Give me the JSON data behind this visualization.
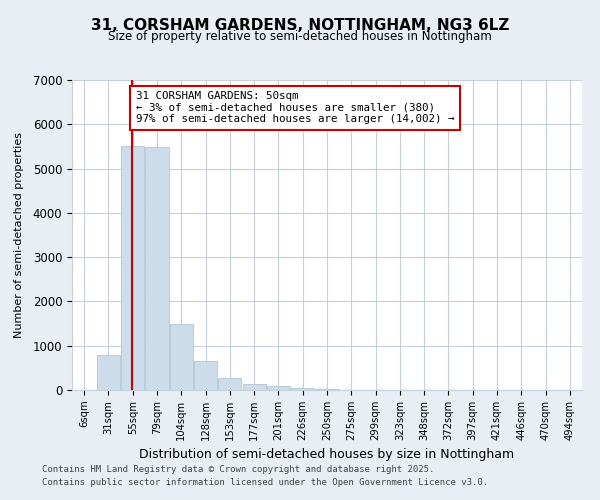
{
  "title": "31, CORSHAM GARDENS, NOTTINGHAM, NG3 6LZ",
  "subtitle": "Size of property relative to semi-detached houses in Nottingham",
  "xlabel": "Distribution of semi-detached houses by size in Nottingham",
  "ylabel": "Number of semi-detached properties",
  "categories": [
    "6sqm",
    "31sqm",
    "55sqm",
    "79sqm",
    "104sqm",
    "128sqm",
    "153sqm",
    "177sqm",
    "201sqm",
    "226sqm",
    "250sqm",
    "275sqm",
    "299sqm",
    "323sqm",
    "348sqm",
    "372sqm",
    "397sqm",
    "421sqm",
    "446sqm",
    "470sqm",
    "494sqm"
  ],
  "values": [
    0,
    800,
    5520,
    5480,
    1490,
    650,
    270,
    130,
    80,
    50,
    30,
    0,
    0,
    0,
    0,
    0,
    0,
    0,
    0,
    0,
    0
  ],
  "bar_color": "#cddceb",
  "bar_edge_color": "#aabfce",
  "property_line_x": 1.97,
  "property_sqm": 50,
  "property_label": "31 CORSHAM GARDENS: 50sqm",
  "pct_smaller": 3,
  "pct_larger": 97,
  "n_smaller": 380,
  "n_larger": 14002,
  "annotation_box_color": "#ffffff",
  "annotation_box_edge": "#cc0000",
  "red_line_color": "#cc0000",
  "ylim": [
    0,
    7000
  ],
  "yticks": [
    0,
    1000,
    2000,
    3000,
    4000,
    5000,
    6000,
    7000
  ],
  "footer1": "Contains HM Land Registry data © Crown copyright and database right 2025.",
  "footer2": "Contains public sector information licensed under the Open Government Licence v3.0.",
  "bg_color": "#e8eef4",
  "plot_bg_color": "#ffffff",
  "grid_color": "#c5d0dc"
}
